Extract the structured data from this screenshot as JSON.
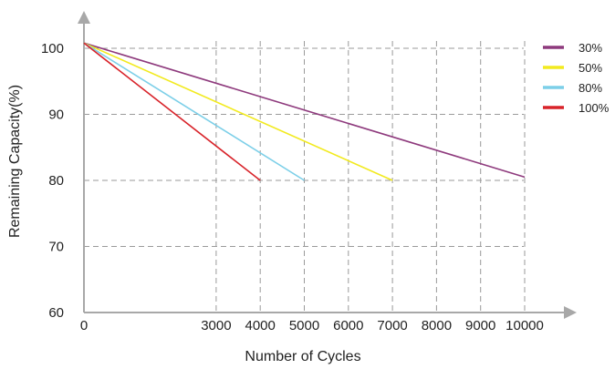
{
  "chart_data": {
    "type": "line",
    "xlabel": "Number of Cycles",
    "ylabel": "Remaining Capacity(%)",
    "xlim": [
      0,
      10000
    ],
    "ylim": [
      60,
      100
    ],
    "x_ticks": [
      0,
      3000,
      4000,
      5000,
      6000,
      7000,
      8000,
      9000,
      10000
    ],
    "x_tick_labels": [
      "0",
      "3000",
      "4000",
      "5000",
      "6000",
      "7000",
      "8000",
      "9000",
      "10000"
    ],
    "x_gridlines": [
      3000,
      4000,
      5000,
      6000,
      7000,
      8000,
      9000,
      10000
    ],
    "y_ticks": [
      60,
      70,
      80,
      90,
      100
    ],
    "y_tick_labels": [
      "60",
      "70",
      "80",
      "90",
      "100"
    ],
    "y_gridlines": [
      70,
      80,
      90,
      100
    ],
    "grid": "dashed",
    "legend_position": "right",
    "series": [
      {
        "name": "30%",
        "color": "#8e3a7d",
        "x": [
          0,
          10000
        ],
        "y": [
          100.8,
          80.5
        ]
      },
      {
        "name": "50%",
        "color": "#f2ea1f",
        "x": [
          0,
          7000
        ],
        "y": [
          100.8,
          80
        ]
      },
      {
        "name": "80%",
        "color": "#7ccfe8",
        "x": [
          0,
          5000
        ],
        "y": [
          100.8,
          80
        ]
      },
      {
        "name": "100%",
        "color": "#d8232a",
        "x": [
          0,
          4000
        ],
        "y": [
          100.8,
          80
        ]
      }
    ]
  }
}
